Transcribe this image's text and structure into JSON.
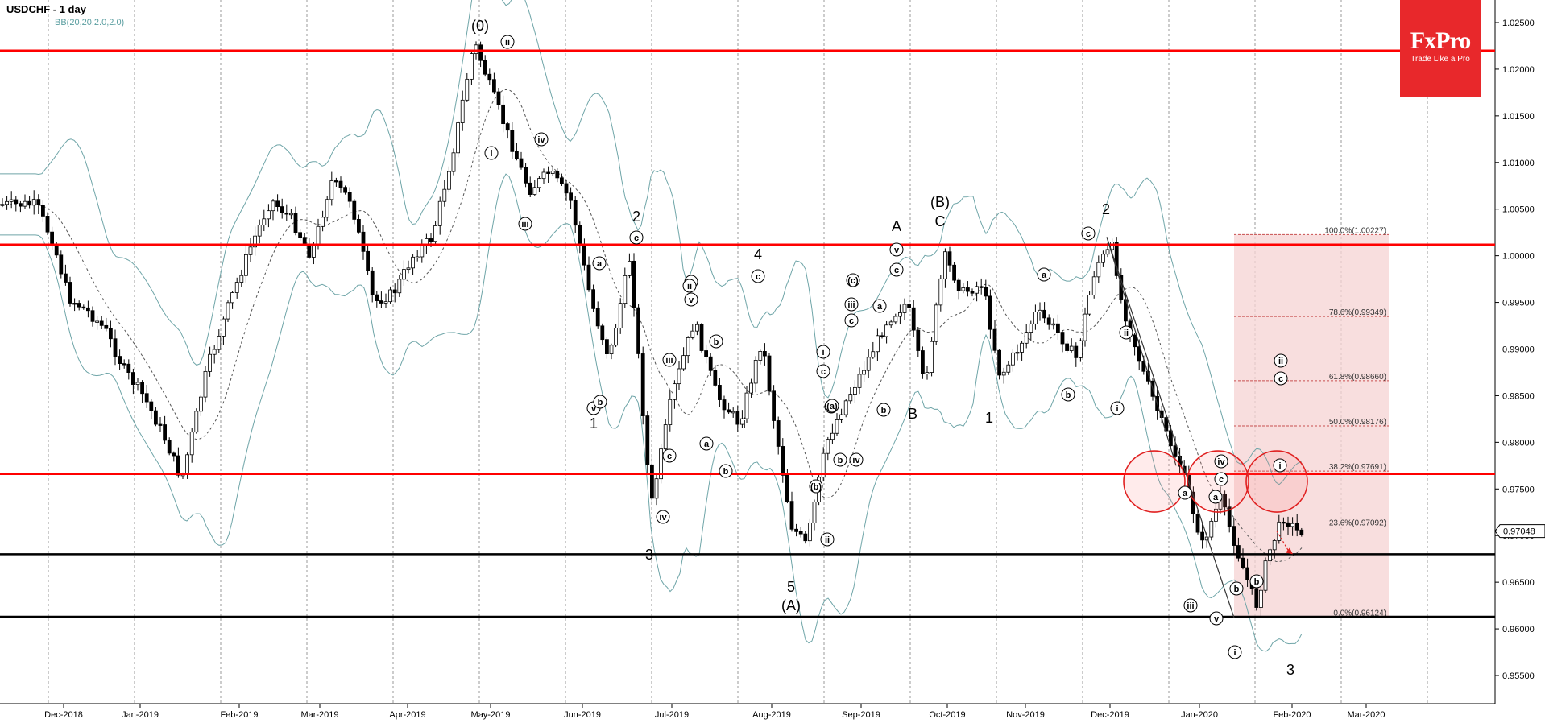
{
  "header": {
    "symbol_label": "USDCHF - 1 day",
    "indicator_label": "BB(20,20,2.0,2.0)"
  },
  "logo": {
    "name": "FxPro",
    "tagline": "Trade Like a Pro"
  },
  "colors": {
    "candle_up": "#ffffff",
    "candle_down": "#000000",
    "level_line": "#ff0000",
    "support_line": "#000000",
    "bands": "#6fa5a8",
    "fib_zone": "#f5d3d3",
    "fib_line": "#c75050",
    "grid": "#9a9a9a",
    "circle": "#e02020"
  },
  "chart_data": {
    "type": "candlestick",
    "title": "USDCHF - 1 day",
    "indicator": "BB(20,20,2.0,2.0)",
    "ylim": [
      0.953,
      1.028
    ],
    "y_ticks": [
      "1.02500",
      "1.02000",
      "1.01500",
      "1.01000",
      "1.00500",
      "1.00000",
      "0.99500",
      "0.99000",
      "0.98500",
      "0.98000",
      "0.97500",
      "0.97000",
      "0.96500",
      "0.96000",
      "0.95500"
    ],
    "x_ticks": [
      "Dec-2018",
      "Jan-2019",
      "Feb-2019",
      "Mar-2019",
      "Apr-2019",
      "May-2019",
      "Jun-2019",
      "Jul-2019",
      "Aug-2019",
      "Sep-2019",
      "Oct-2019",
      "Nov-2019",
      "Dec-2019",
      "Jan-2020",
      "Feb-2020",
      "Mar-2020"
    ],
    "grid": true,
    "current_price": "0.97048",
    "horizontal_levels": [
      {
        "value": 1.022,
        "color": "red"
      },
      {
        "value": 1.0012,
        "color": "red"
      },
      {
        "value": 0.9766,
        "color": "red"
      },
      {
        "value": 0.968,
        "color": "black"
      },
      {
        "value": 0.9613,
        "color": "black"
      }
    ],
    "fibonacci": [
      {
        "label": "100.0%(1.00227)",
        "value": 1.00227
      },
      {
        "label": "78.6%(0.99349)",
        "value": 0.99349
      },
      {
        "label": "61.8%(0.98660)",
        "value": 0.9866
      },
      {
        "label": "50.0%(0.98176)",
        "value": 0.98176
      },
      {
        "label": "38.2%(0.97691)",
        "value": 0.97691
      },
      {
        "label": "23.6%(0.97092)",
        "value": 0.97092
      },
      {
        "label": "0.0%(0.96124)",
        "value": 0.96124
      }
    ],
    "price_path": [
      [
        "2018-11-20",
        1.0055
      ],
      [
        "2018-11-27",
        1.0012
      ],
      [
        "2018-12-03",
        0.9955
      ],
      [
        "2018-12-11",
        0.994
      ],
      [
        "2018-12-18",
        0.992
      ],
      [
        "2018-12-25",
        0.988
      ],
      [
        "2019-01-02",
        0.985
      ],
      [
        "2019-01-08",
        0.981
      ],
      [
        "2019-01-14",
        0.976
      ],
      [
        "2019-01-22",
        0.988
      ],
      [
        "2019-01-29",
        0.995
      ],
      [
        "2019-02-05",
        1.001
      ],
      [
        "2019-02-12",
        1.006
      ],
      [
        "2019-02-19",
        1.004
      ],
      [
        "2019-02-26",
        1.0
      ],
      [
        "2019-03-05",
        1.008
      ],
      [
        "2019-03-12",
        1.006
      ],
      [
        "2019-03-20",
        0.995
      ],
      [
        "2019-03-27",
        0.996
      ],
      [
        "2019-04-03",
        1.0
      ],
      [
        "2019-04-10",
        1.002
      ],
      [
        "2019-04-18",
        1.012
      ],
      [
        "2019-04-25",
        1.023
      ],
      [
        "2019-05-01",
        1.018
      ],
      [
        "2019-05-08",
        1.012
      ],
      [
        "2019-05-14",
        1.007
      ],
      [
        "2019-05-21",
        1.009
      ],
      [
        "2019-05-28",
        1.006
      ],
      [
        "2019-06-04",
        0.995
      ],
      [
        "2019-06-10",
        0.989
      ],
      [
        "2019-06-17",
        1.0
      ],
      [
        "2019-06-24",
        0.973
      ],
      [
        "2019-07-01",
        0.985
      ],
      [
        "2019-07-08",
        0.993
      ],
      [
        "2019-07-15",
        0.985
      ],
      [
        "2019-07-22",
        0.982
      ],
      [
        "2019-07-29",
        0.991
      ],
      [
        "2019-08-02",
        0.982
      ],
      [
        "2019-08-08",
        0.971
      ],
      [
        "2019-08-13",
        0.969
      ],
      [
        "2019-08-20",
        0.98
      ],
      [
        "2019-08-26",
        0.984
      ],
      [
        "2019-09-02",
        0.988
      ],
      [
        "2019-09-10",
        0.993
      ],
      [
        "2019-09-17",
        0.995
      ],
      [
        "2019-09-23",
        0.986
      ],
      [
        "2019-09-30",
        1.0
      ],
      [
        "2019-10-07",
        0.996
      ],
      [
        "2019-10-15",
        0.997
      ],
      [
        "2019-10-22",
        0.987
      ],
      [
        "2019-10-29",
        0.99
      ],
      [
        "2019-11-05",
        0.994
      ],
      [
        "2019-11-12",
        0.992
      ],
      [
        "2019-11-19",
        0.989
      ],
      [
        "2019-11-26",
        0.999
      ],
      [
        "2019-12-02",
        1.001
      ],
      [
        "2019-12-05",
        0.995
      ],
      [
        "2019-12-12",
        0.988
      ],
      [
        "2019-12-19",
        0.982
      ],
      [
        "2019-12-26",
        0.977
      ],
      [
        "2020-01-02",
        0.969
      ],
      [
        "2020-01-08",
        0.974
      ],
      [
        "2020-01-14",
        0.968
      ],
      [
        "2020-01-20",
        0.9625
      ],
      [
        "2020-01-24",
        0.968
      ],
      [
        "2020-01-29",
        0.972
      ],
      [
        "2020-02-03",
        0.9705
      ]
    ],
    "wave_labels": [
      "(0)",
      "ii",
      "i",
      "iv",
      "iii",
      "2",
      "c",
      "a",
      "v",
      "b",
      "1",
      "3",
      "4",
      "c",
      "a",
      "v",
      "b",
      "iii",
      "i",
      "iv",
      "ii",
      "a",
      "b",
      "c",
      "5",
      "(A)",
      "i",
      "c",
      "a",
      "b",
      "iv",
      "ii",
      "iii",
      "c",
      "(a)",
      "(b)",
      "(c)",
      "a",
      "b",
      "A",
      "v",
      "c",
      "(B)",
      "C",
      "B",
      "1",
      "a",
      "b",
      "c",
      "2",
      "ii",
      "i",
      "iv",
      "c",
      "a",
      "b",
      "iii",
      "v",
      "i",
      "a",
      "b",
      "ii",
      "c",
      "i",
      "3"
    ]
  }
}
